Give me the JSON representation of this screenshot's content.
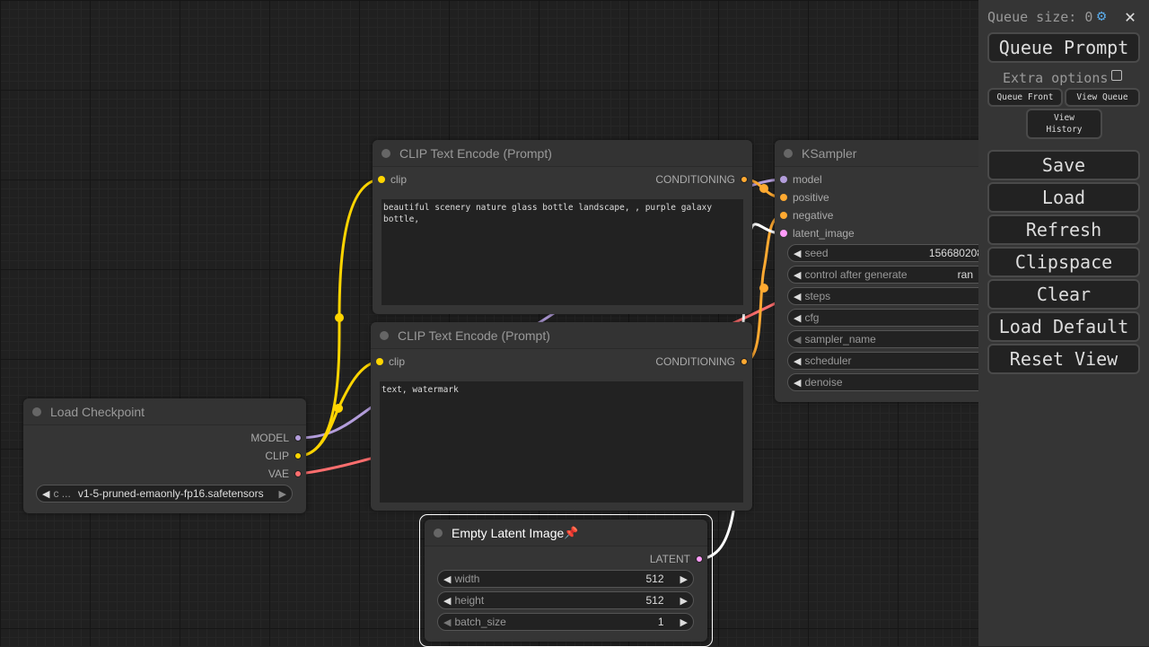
{
  "panel": {
    "queue_size_label": "Queue size: 0",
    "queue_prompt": "Queue Prompt",
    "extra_options": "Extra options",
    "queue_front": "Queue Front",
    "view_queue": "View Queue",
    "view_history": "View History",
    "buttons": [
      "Save",
      "Load",
      "Refresh",
      "Clipspace",
      "Clear",
      "Load Default",
      "Reset View"
    ]
  },
  "nodes": {
    "clip1": {
      "title": "CLIP Text Encode (Prompt)",
      "input": "clip",
      "output": "CONDITIONING",
      "text": "beautiful scenery nature glass bottle landscape, , purple galaxy bottle,"
    },
    "clip2": {
      "title": "CLIP Text Encode (Prompt)",
      "input": "clip",
      "output": "CONDITIONING",
      "text": "text, watermark"
    },
    "checkpoint": {
      "title": "Load Checkpoint",
      "outputs": [
        "MODEL",
        "CLIP",
        "VAE"
      ],
      "ckpt_label": "c ...",
      "ckpt_value": "v1-5-pruned-emaonly-fp16.safetensors"
    },
    "ksampler": {
      "title": "KSampler",
      "inputs": [
        "model",
        "positive",
        "negative",
        "latent_image"
      ],
      "widgets": [
        {
          "label": "seed",
          "value": "156680208"
        },
        {
          "label": "control after generate",
          "value": "ran"
        },
        {
          "label": "steps",
          "value": ""
        },
        {
          "label": "cfg",
          "value": ""
        },
        {
          "label": "sampler_name",
          "value": ""
        },
        {
          "label": "scheduler",
          "value": ""
        },
        {
          "label": "denoise",
          "value": ""
        }
      ]
    },
    "latent": {
      "title": "Empty Latent Image",
      "pin": "📌",
      "output": "LATENT",
      "widgets": [
        {
          "label": "width",
          "value": "512"
        },
        {
          "label": "height",
          "value": "512"
        },
        {
          "label": "batch_size",
          "value": "1"
        }
      ]
    }
  },
  "colors": {
    "clip": "#ffd500",
    "model": "#b39ddb",
    "vae": "#ff6e6e",
    "conditioning": "#ffa931",
    "latent": "#ff9cf9",
    "latent_wire": "#ffffff"
  }
}
